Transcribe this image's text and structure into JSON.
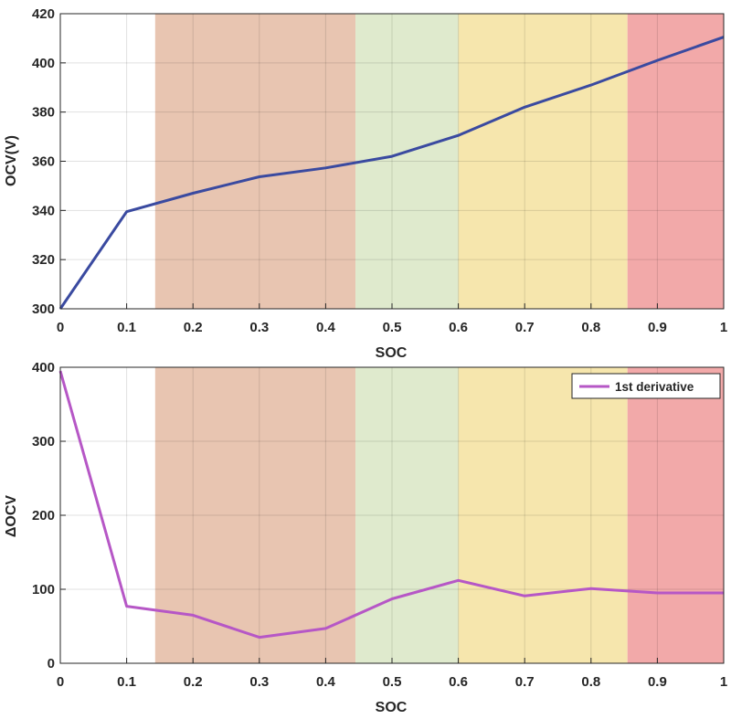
{
  "chart_data": [
    {
      "type": "line",
      "title": "",
      "xlabel": "SOC",
      "ylabel": "OCV(V)",
      "xlim": [
        0,
        1
      ],
      "ylim": [
        300,
        420
      ],
      "xticks": [
        "0",
        "0.1",
        "0.2",
        "0.3",
        "0.4",
        "0.5",
        "0.6",
        "0.7",
        "0.8",
        "0.9",
        "1"
      ],
      "yticks": [
        "300",
        "320",
        "340",
        "360",
        "380",
        "400",
        "420"
      ],
      "grid": true,
      "regions": [
        {
          "x0": 0.143,
          "x1": 0.445,
          "color": "#e8c5b1"
        },
        {
          "x0": 0.445,
          "x1": 0.6,
          "color": "#dfeacd"
        },
        {
          "x0": 0.6,
          "x1": 0.855,
          "color": "#f6e6ad"
        },
        {
          "x0": 0.855,
          "x1": 1.0,
          "color": "#f2a9a9"
        }
      ],
      "series": [
        {
          "name": "",
          "color": "#3a4aa0",
          "x": [
            0,
            0.1,
            0.2,
            0.3,
            0.4,
            0.5,
            0.6,
            0.7,
            0.8,
            0.9,
            1.0
          ],
          "y": [
            300,
            339.5,
            347,
            353.7,
            357.3,
            362,
            370.5,
            382,
            391,
            401,
            410.5
          ]
        }
      ]
    },
    {
      "type": "line",
      "title": "",
      "xlabel": "SOC",
      "ylabel": "ΔOCV",
      "xlim": [
        0,
        1
      ],
      "ylim": [
        0,
        400
      ],
      "xticks": [
        "0",
        "0.1",
        "0.2",
        "0.3",
        "0.4",
        "0.5",
        "0.6",
        "0.7",
        "0.8",
        "0.9",
        "1"
      ],
      "yticks": [
        "0",
        "100",
        "200",
        "300",
        "400"
      ],
      "grid": true,
      "legend_position": "top-right",
      "regions": [
        {
          "x0": 0.143,
          "x1": 0.445,
          "color": "#e8c5b1"
        },
        {
          "x0": 0.445,
          "x1": 0.6,
          "color": "#dfeacd"
        },
        {
          "x0": 0.6,
          "x1": 0.855,
          "color": "#f6e6ad"
        },
        {
          "x0": 0.855,
          "x1": 1.0,
          "color": "#f2a9a9"
        }
      ],
      "series": [
        {
          "name": "1st derivative",
          "color": "#b657c6",
          "x": [
            0,
            0.1,
            0.2,
            0.3,
            0.4,
            0.5,
            0.6,
            0.7,
            0.8,
            0.9,
            1.0
          ],
          "y": [
            395,
            77,
            65,
            35,
            47,
            87,
            112,
            91,
            101,
            95,
            95
          ]
        }
      ]
    }
  ]
}
